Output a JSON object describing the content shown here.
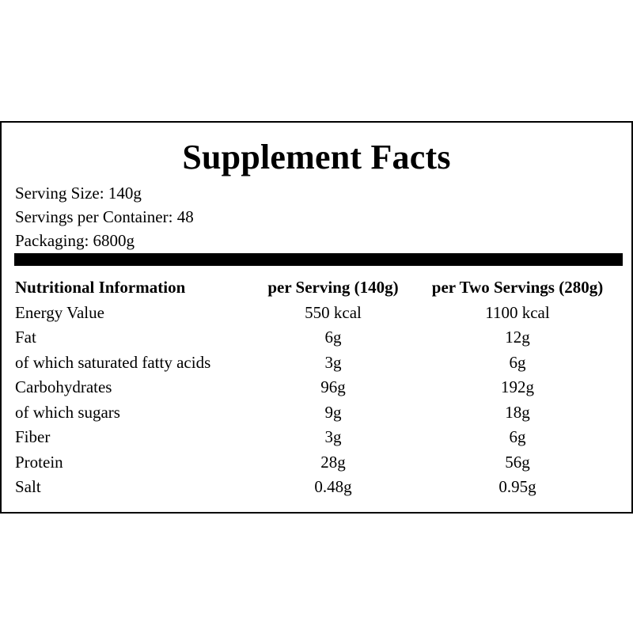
{
  "label": {
    "title": "Supplement Facts",
    "serving_size": "Serving Size: 140g",
    "servings_per_container": "Servings per Container: 48",
    "packaging": "Packaging: 6800g"
  },
  "table": {
    "headers": {
      "name": "Nutritional Information",
      "per_serving": "per Serving (140g)",
      "per_two_servings": "per Two Servings (280g)"
    },
    "rows": [
      {
        "name": "Energy Value",
        "per_serving": "550 kcal",
        "per_two_servings": "1100 kcal"
      },
      {
        "name": "Fat",
        "per_serving": "6g",
        "per_two_servings": "12g"
      },
      {
        "name": "of which saturated fatty acids",
        "per_serving": "3g",
        "per_two_servings": "6g"
      },
      {
        "name": "Carbohydrates",
        "per_serving": "96g",
        "per_two_servings": "192g"
      },
      {
        "name": "of which sugars",
        "per_serving": "9g",
        "per_two_servings": "18g"
      },
      {
        "name": "Fiber",
        "per_serving": "3g",
        "per_two_servings": "6g"
      },
      {
        "name": "Protein",
        "per_serving": "28g",
        "per_two_servings": "56g"
      },
      {
        "name": "Salt",
        "per_serving": "0.48g",
        "per_two_servings": "0.95g"
      }
    ]
  }
}
